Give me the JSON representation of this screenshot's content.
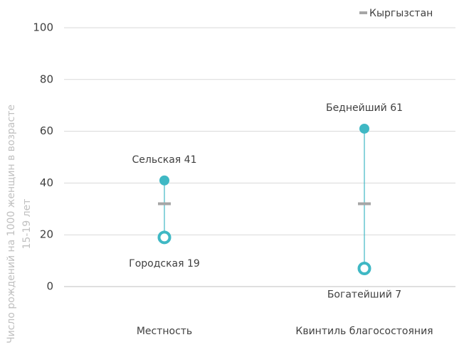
{
  "chart_data": {
    "type": "dumbbell",
    "ylabel": [
      "Число рождений на 1000 женщин в возрасте",
      "15-19 лет"
    ],
    "categories": [
      "Местность",
      "Квинтиль благосостояния"
    ],
    "series": [
      {
        "color": "#3fb8c4",
        "values": [
          41,
          61
        ],
        "value_labels": [
          "Сельская 41",
          "Беднейший 61"
        ]
      },
      {
        "color": "#3fb8c4",
        "values": [
          19,
          7
        ],
        "value_labels": [
          "Городская 19",
          "Богатейший 7"
        ]
      },
      {
        "name": "Кыргызстан",
        "color": "#a6a6a6",
        "values": [
          32,
          32
        ]
      }
    ],
    "ylim": [
      0,
      100
    ],
    "yticks": [
      0,
      20,
      40,
      60,
      80,
      100
    ],
    "grid": true,
    "legend": "top-right"
  }
}
